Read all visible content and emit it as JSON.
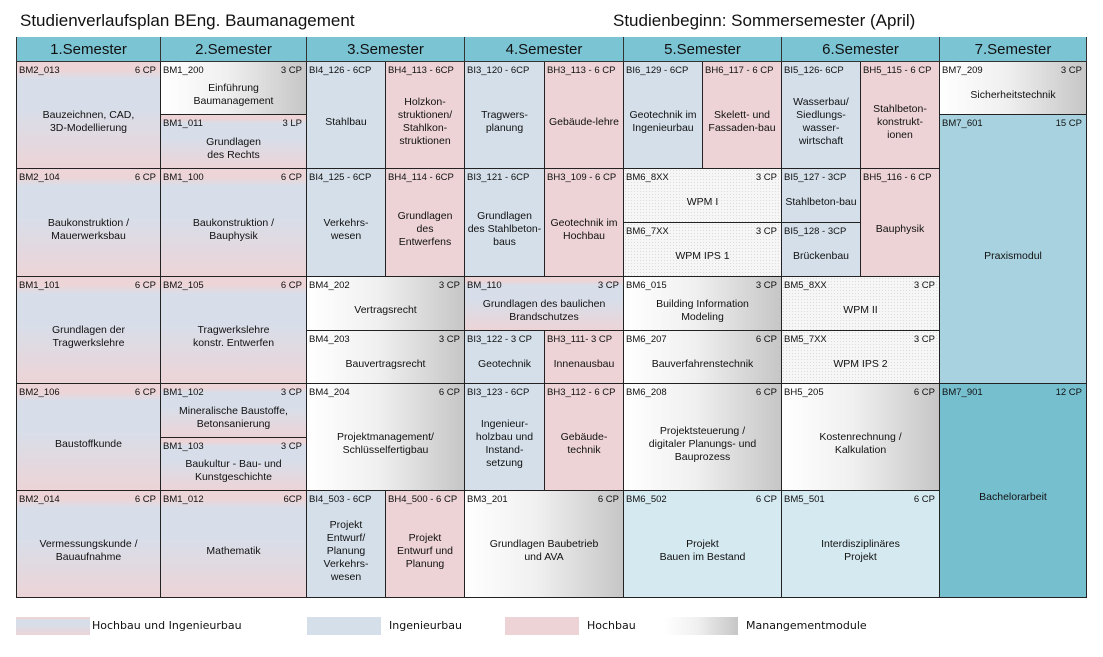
{
  "header": {
    "title": "Studienverlaufsplan BEng. Baumanagement",
    "start": "Studienbeginn: Sommersemester (April)"
  },
  "semesters": [
    "1.Semester",
    "2.Semester",
    "3.Semester",
    "4.Semester",
    "5.Semester",
    "6.Semester",
    "7.Semester"
  ],
  "colors": {
    "header": "#7bc4d4",
    "hochbau_ingenieurbau": "#d8dee9",
    "ingenieurbau": "#d4dfea",
    "hochbau": "#edd3d5",
    "management": "#c6c6c6",
    "praxis": "#a8d2df",
    "bachelor": "#76bfcf"
  },
  "modules": [
    {
      "code": "BM2_013",
      "cp": "6 CP",
      "title": "Bauzeichnen, CAD,\n3D-Modellierung",
      "type": "hi"
    },
    {
      "code": "BM1_200",
      "cp": "3 CP",
      "title": "Einführung\nBaumanagement",
      "type": "m"
    },
    {
      "code": "BM1_011",
      "cp": "3 LP",
      "title": "Grundlagen\ndes Rechts",
      "type": "hi"
    },
    {
      "code": "BI4_126 - 6CP",
      "cp": "",
      "title": "Stahlbau",
      "type": "i"
    },
    {
      "code": "BH4_113 - 6CP",
      "cp": "",
      "title": "Holzkon-\nstruktionen/\nStahlkon-\nstruktionen",
      "type": "h"
    },
    {
      "code": "BI3_120 - 6CP",
      "cp": "",
      "title": "Tragwers-\nplanung",
      "type": "i"
    },
    {
      "code": "BH3_113 - 6 CP",
      "cp": "",
      "title": "Gebäude-lehre",
      "type": "h"
    },
    {
      "code": "BI6_129 - 6CP",
      "cp": "",
      "title": "Geotechnik im\nIngenieurbau",
      "type": "i"
    },
    {
      "code": "BH6_117 - 6 CP",
      "cp": "",
      "title": "Skelett- und\nFassaden-bau",
      "type": "h"
    },
    {
      "code": "BI5_126- 6CP",
      "cp": "",
      "title": "Wasserbau/\nSiedlungs-\nwasser-\nwirtschaft",
      "type": "i"
    },
    {
      "code": "BH5_115 - 6 CP",
      "cp": "",
      "title": "Stahlbeton-\nkonstrukt-\nionen",
      "type": "h"
    },
    {
      "code": "BM7_209",
      "cp": "3 CP",
      "title": "Sicherheitstechnik",
      "type": "m"
    },
    {
      "code": "BM7_601",
      "cp": "15 CP",
      "title": "Praxismodul",
      "type": "p"
    },
    {
      "code": "BM2_104",
      "cp": "6 CP",
      "title": "Baukonstruktion /\nMauerwerksbau",
      "type": "hi"
    },
    {
      "code": "BM1_100",
      "cp": "6 CP",
      "title": "Baukonstruktion /\nBauphysik",
      "type": "hi"
    },
    {
      "code": "BI4_125 - 6CP",
      "cp": "",
      "title": "Verkehrs-\nwesen",
      "type": "i"
    },
    {
      "code": "BH4_114 - 6CP",
      "cp": "",
      "title": "Grundlagen\ndes\nEntwerfens",
      "type": "h"
    },
    {
      "code": "BI3_121 - 6CP",
      "cp": "",
      "title": "Grundlagen\ndes Stahlbeton-\nbaus",
      "type": "i"
    },
    {
      "code": "BH3_109 - 6 CP",
      "cp": "",
      "title": "Geotechnik im\nHochbau",
      "type": "h"
    },
    {
      "code": "BM6_8XX",
      "cp": "3 CP",
      "title": "WPM I",
      "type": "w"
    },
    {
      "code": "BM6_7XX",
      "cp": "3 CP",
      "title": "WPM IPS 1",
      "type": "w"
    },
    {
      "code": "BI5_127 - 3CP",
      "cp": "",
      "title": "Stahlbeton-bau",
      "type": "i"
    },
    {
      "code": "BI5_128 - 3CP",
      "cp": "",
      "title": "Brückenbau",
      "type": "i"
    },
    {
      "code": "BH5_116 - 6 CP",
      "cp": "",
      "title": "Bauphysik",
      "type": "h"
    },
    {
      "code": "BM1_101",
      "cp": "6 CP",
      "title": "Grundlagen der\nTragwerkslehre",
      "type": "hi"
    },
    {
      "code": "BM2_105",
      "cp": "6 CP",
      "title": "Tragwerkslehre\nkonstr. Entwerfen",
      "type": "hi"
    },
    {
      "code": "BM4_202",
      "cp": "3 CP",
      "title": "Vertragsrecht",
      "type": "m"
    },
    {
      "code": "BM4_203",
      "cp": "3 CP",
      "title": "Bauvertragsrecht",
      "type": "m"
    },
    {
      "code": "BM_110",
      "cp": "3 CP",
      "title": "Grundlagen des baulichen\nBrandschutzes",
      "type": "hi"
    },
    {
      "code": "BI3_122 - 3 CP",
      "cp": "",
      "title": "Geotechnik",
      "type": "i"
    },
    {
      "code": "BH3_111- 3 CP",
      "cp": "",
      "title": "Innenausbau",
      "type": "h"
    },
    {
      "code": "BM6_015",
      "cp": "3 CP",
      "title": "Building Information\nModeling",
      "type": "m"
    },
    {
      "code": "BM6_207",
      "cp": "6 CP",
      "title": "Bauverfahrenstechnik",
      "type": "m"
    },
    {
      "code": "BM5_8XX",
      "cp": "3 CP",
      "title": "WPM II",
      "type": "w"
    },
    {
      "code": "BM5_7XX",
      "cp": "3 CP",
      "title": "WPM IPS 2",
      "type": "w"
    },
    {
      "code": "BM2_106",
      "cp": "6 CP",
      "title": "Baustoffkunde",
      "type": "hi"
    },
    {
      "code": "BM1_102",
      "cp": "3 CP",
      "title": "Mineralische Baustoffe,\nBetonsanierung",
      "type": "hi"
    },
    {
      "code": "BM1_103",
      "cp": "3 CP",
      "title": "Baukultur - Bau- und\nKunstgeschichte",
      "type": "hi"
    },
    {
      "code": "BM4_204",
      "cp": "6 CP",
      "title": "Projektmanagement/\nSchlüsselfertigbau",
      "type": "m"
    },
    {
      "code": "BI3_123 - 6CP",
      "cp": "",
      "title": "Ingenieur-\nholzbau und\nInstand-\nsetzung",
      "type": "i"
    },
    {
      "code": "BH3_112 - 6 CP",
      "cp": "",
      "title": "Gebäude-\ntechnik",
      "type": "h"
    },
    {
      "code": "BM6_208",
      "cp": "6 CP",
      "title": "Projektsteuerung /\ndigitaler Planungs- und\nBauprozess",
      "type": "m"
    },
    {
      "code": "BH5_205",
      "cp": "6 CP",
      "title": "Kostenrechnung /\nKalkulation",
      "type": "m"
    },
    {
      "code": "BM7_901",
      "cp": "12 CP",
      "title": "Bachelorarbeit",
      "type": "b"
    },
    {
      "code": "BM2_014",
      "cp": "6 CP",
      "title": "Vermessungskunde /\nBauaufnahme",
      "type": "hi"
    },
    {
      "code": "BM1_012",
      "cp": "6CP",
      "title": "Mathematik",
      "type": "hi"
    },
    {
      "code": "BI4_503 - 6CP",
      "cp": "",
      "title": "Projekt\nEntwurf/\nPlanung\nVerkehrs-\nwesen",
      "type": "i"
    },
    {
      "code": "BH4_500 - 6 CP",
      "cp": "",
      "title": "Projekt\nEntwurf und\nPlanung",
      "type": "h"
    },
    {
      "code": "BM3_201",
      "cp": "6 CP",
      "title": "Grundlagen Baubetrieb\nund AVA",
      "type": "m"
    },
    {
      "code": "BM6_502",
      "cp": "6 CP",
      "title": "Projekt\nBauen im Bestand",
      "type": "lb"
    },
    {
      "code": "BM5_501",
      "cp": "6 CP",
      "title": "Interdisziplinäres\nProjekt",
      "type": "lb"
    }
  ],
  "legend": [
    {
      "label": "Hochbau und Ingenieurbau",
      "type": "hi"
    },
    {
      "label": "Ingenieurbau",
      "type": "i"
    },
    {
      "label": "Hochbau",
      "type": "h"
    },
    {
      "label": "Manangementmodule",
      "type": "m"
    }
  ]
}
